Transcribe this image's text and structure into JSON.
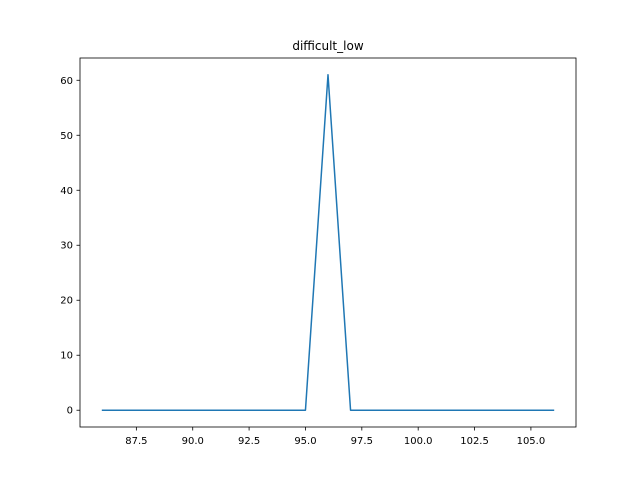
{
  "chart_data": {
    "type": "line",
    "title": "difficult_low",
    "xlabel": "",
    "ylabel": "",
    "xlim": [
      85.0,
      107.0
    ],
    "ylim": [
      -3.05,
      64.05
    ],
    "x_ticks": [
      87.5,
      90.0,
      92.5,
      95.0,
      97.5,
      100.0,
      102.5,
      105.0
    ],
    "x_tick_labels": [
      "87.5",
      "90.0",
      "92.5",
      "95.0",
      "97.5",
      "100.0",
      "102.5",
      "105.0"
    ],
    "y_ticks": [
      0,
      10,
      20,
      30,
      40,
      50,
      60
    ],
    "y_tick_labels": [
      "0",
      "10",
      "20",
      "30",
      "40",
      "50",
      "60"
    ],
    "grid": false,
    "series": [
      {
        "color": "#1f77b4",
        "x": [
          86,
          87,
          88,
          89,
          90,
          91,
          92,
          93,
          94,
          95,
          96,
          97,
          98,
          99,
          100,
          101,
          102,
          103,
          104,
          105,
          106
        ],
        "y": [
          0,
          0,
          0,
          0,
          0,
          0,
          0,
          0,
          0,
          0,
          61,
          0,
          0,
          0,
          0,
          0,
          0,
          0,
          0,
          0,
          0
        ]
      }
    ]
  }
}
